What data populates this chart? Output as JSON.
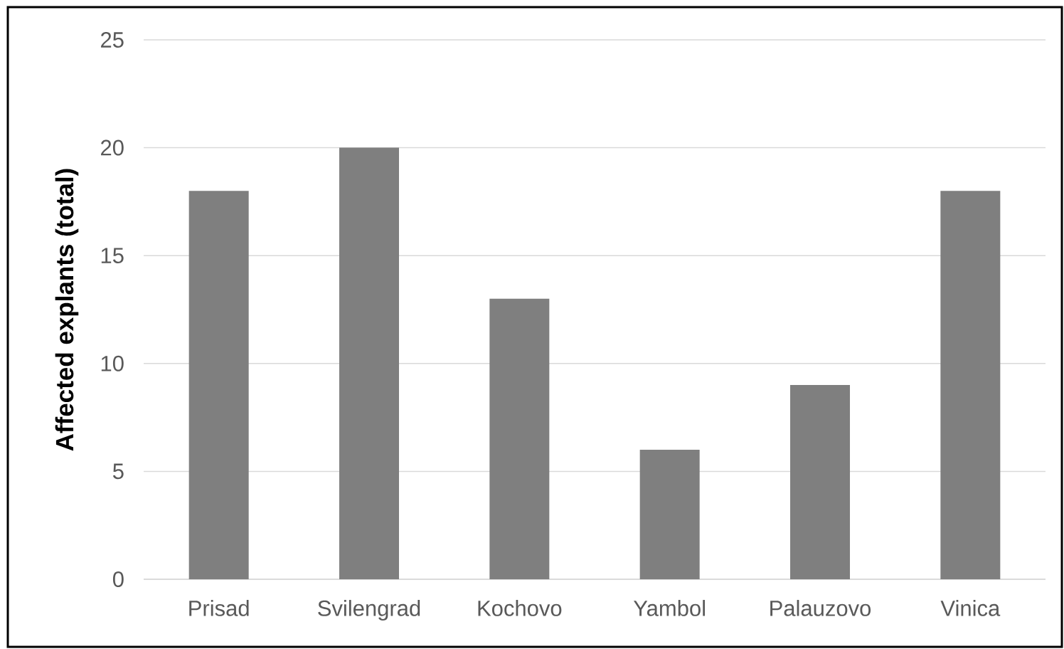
{
  "chart_data": {
    "type": "bar",
    "ylabel": "Affected explants (total)",
    "categories": [
      "Prisad",
      "Svilengrad",
      "Kochovo",
      "Yambol",
      "Palauzovo",
      "Vinica"
    ],
    "values": [
      18,
      20,
      13,
      6,
      9,
      18
    ],
    "color": "#7f7f7f",
    "ylim": [
      0,
      25
    ],
    "yticks": [
      0,
      5,
      10,
      15,
      20,
      25
    ],
    "grid": "y"
  }
}
